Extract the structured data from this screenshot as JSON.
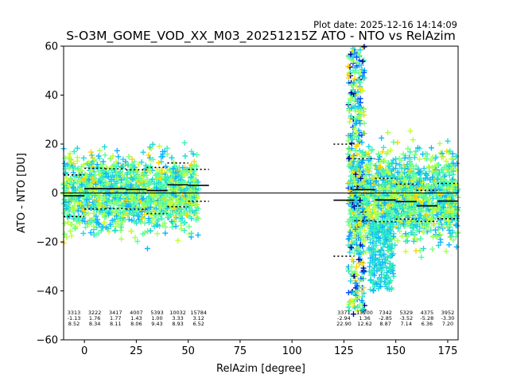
{
  "chart_data": {
    "type": "scatter",
    "plot_date": "Plot date: 2025-12-16 14:14:09",
    "title": "S-O3M_GOME_VOD_XX_M03_20251215Z ATO - NTO vs RelAzim",
    "xlabel": "RelAzim [degree]",
    "ylabel": "ATO - NTO [DU]",
    "xlim": [
      -10,
      180
    ],
    "ylim": [
      -60,
      60
    ],
    "x_ticks": [
      0,
      25,
      50,
      75,
      100,
      125,
      150,
      175
    ],
    "y_ticks": [
      -60,
      -40,
      -20,
      0,
      20,
      40,
      60
    ],
    "x_tick_labels": [
      "0",
      "25",
      "50",
      "75",
      "100",
      "125",
      "150",
      "175"
    ],
    "y_tick_labels": [
      "−60",
      "−40",
      "−20",
      "0",
      "20",
      "40",
      "60"
    ],
    "zero_line": 0,
    "marker": "+",
    "point_colors": [
      "#ffd400",
      "#c6ff28",
      "#a8ff4e",
      "#7dff7a",
      "#50ffa7",
      "#35f0b8",
      "#1fd6e0",
      "#10b4ff",
      "#0a9cff",
      "#0050ff",
      "#00008f"
    ],
    "bins": [
      {
        "x": -5,
        "count": "3313",
        "mean": "-1.13",
        "std": "8.52",
        "mean_value": -1.13,
        "std_value": 8.52
      },
      {
        "x": 5,
        "count": "3222",
        "mean": "1.76",
        "std": "8.34",
        "mean_value": 1.76,
        "std_value": 8.34
      },
      {
        "x": 15,
        "count": "3417",
        "mean": "1.77",
        "std": "8.11",
        "mean_value": 1.77,
        "std_value": 8.11
      },
      {
        "x": 25,
        "count": "4007",
        "mean": "1.43",
        "std": "8.06",
        "mean_value": 1.43,
        "std_value": 8.06
      },
      {
        "x": 35,
        "count": "5393",
        "mean": "1.00",
        "std": "9.43",
        "mean_value": 1.0,
        "std_value": 9.43
      },
      {
        "x": 45,
        "count": "10032",
        "mean": "3.33",
        "std": "8.93",
        "mean_value": 3.33,
        "std_value": 8.93
      },
      {
        "x": 55,
        "count": "15784",
        "mean": "3.12",
        "std": "6.52",
        "mean_value": 3.12,
        "std_value": 6.52
      },
      {
        "x": 125,
        "count": "3371",
        "mean": "-2.94",
        "std": "22.90",
        "mean_value": -2.94,
        "std_value": 22.9
      },
      {
        "x": 135,
        "count": "13200",
        "mean": "1.36",
        "std": "12.62",
        "mean_value": 1.36,
        "std_value": 12.62
      },
      {
        "x": 145,
        "count": "7342",
        "mean": "-2.85",
        "std": "8.87",
        "mean_value": -2.85,
        "std_value": 8.87
      },
      {
        "x": 155,
        "count": "5329",
        "mean": "-3.52",
        "std": "7.14",
        "mean_value": -3.52,
        "std_value": 7.14
      },
      {
        "x": 165,
        "count": "4375",
        "mean": "-5.28",
        "std": "6.36",
        "mean_value": -5.28,
        "std_value": 6.36
      },
      {
        "x": 175,
        "count": "3952",
        "mean": "-3.30",
        "std": "7.20",
        "mean_value": -3.3,
        "std_value": 7.2
      }
    ],
    "scatter_regions": [
      {
        "x_min": -10,
        "x_max": 55,
        "y_center": 0,
        "y_spread": 10
      },
      {
        "x_min": 128,
        "x_max": 180,
        "y_center": -2,
        "y_spread": 12
      }
    ]
  }
}
